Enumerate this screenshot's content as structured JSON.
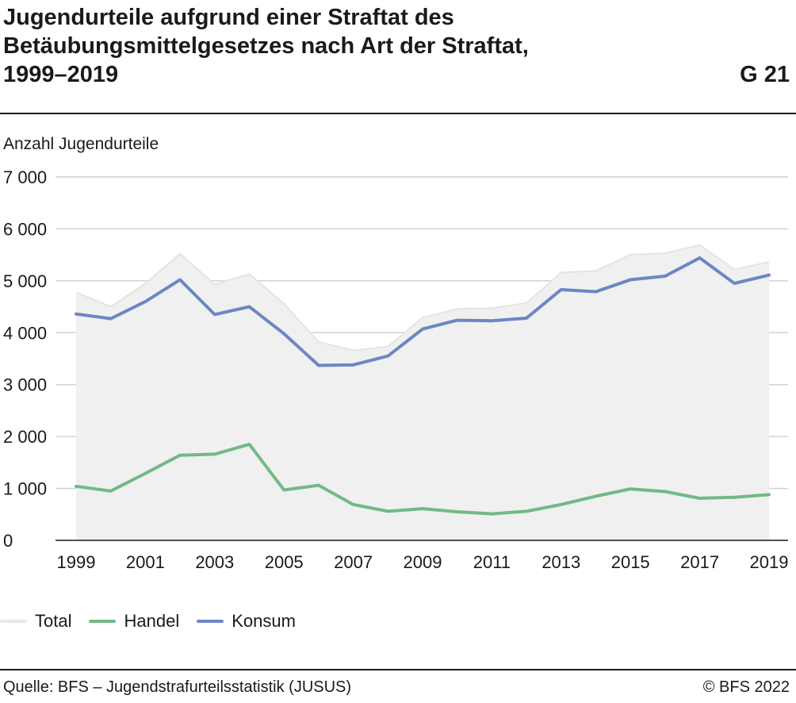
{
  "header": {
    "title_lines": [
      "Jugendurteile aufgrund einer Straftat des",
      "Betäubungsmittelgesetzes nach Art der Straftat,",
      "1999–2019"
    ],
    "graphic_number": "G 21"
  },
  "footer": {
    "source": "Quelle: BFS – Jugendstrafurteilsstatistik (JUSUS)",
    "copyright": "© BFS 2022"
  },
  "chart_data": {
    "type": "area",
    "title": "Jugendurteile aufgrund einer Straftat des Betäubungsmittelgesetzes nach Art der Straftat, 1999–2019",
    "ylabel": "Anzahl Jugendurteile",
    "xlabel": "",
    "ylim": [
      0,
      7000
    ],
    "yticks": [
      0,
      1000,
      2000,
      3000,
      4000,
      5000,
      6000,
      7000
    ],
    "ytick_labels": [
      "0",
      "1 000",
      "2 000",
      "3 000",
      "4 000",
      "5 000",
      "6 000",
      "7 000"
    ],
    "xtick_labels": [
      "1999",
      "2001",
      "2003",
      "2005",
      "2007",
      "2009",
      "2011",
      "2013",
      "2015",
      "2017",
      "2019"
    ],
    "x": [
      1999,
      2000,
      2001,
      2002,
      2003,
      2004,
      2005,
      2006,
      2007,
      2008,
      2009,
      2010,
      2011,
      2012,
      2013,
      2014,
      2015,
      2016,
      2017,
      2018,
      2019
    ],
    "grid": true,
    "legend_position": "bottom-left",
    "series": [
      {
        "name": "Total",
        "style": "area",
        "color": "#f0f0f0",
        "line_color": "#e4e4e4",
        "values": [
          4780,
          4500,
          4950,
          5520,
          4930,
          5130,
          4560,
          3820,
          3660,
          3730,
          4290,
          4460,
          4470,
          4570,
          5160,
          5190,
          5500,
          5530,
          5690,
          5220,
          5360
        ]
      },
      {
        "name": "Handel",
        "style": "line",
        "color": "#72b987",
        "values": [
          1040,
          950,
          1290,
          1640,
          1660,
          1850,
          970,
          1060,
          690,
          560,
          610,
          550,
          510,
          560,
          690,
          850,
          990,
          940,
          810,
          830,
          880
        ]
      },
      {
        "name": "Konsum",
        "style": "line",
        "color": "#6d86c4",
        "values": [
          4360,
          4270,
          4600,
          5020,
          4350,
          4500,
          3980,
          3370,
          3380,
          3550,
          4070,
          4240,
          4230,
          4280,
          4830,
          4790,
          5020,
          5090,
          5440,
          4950,
          5110
        ]
      }
    ]
  }
}
